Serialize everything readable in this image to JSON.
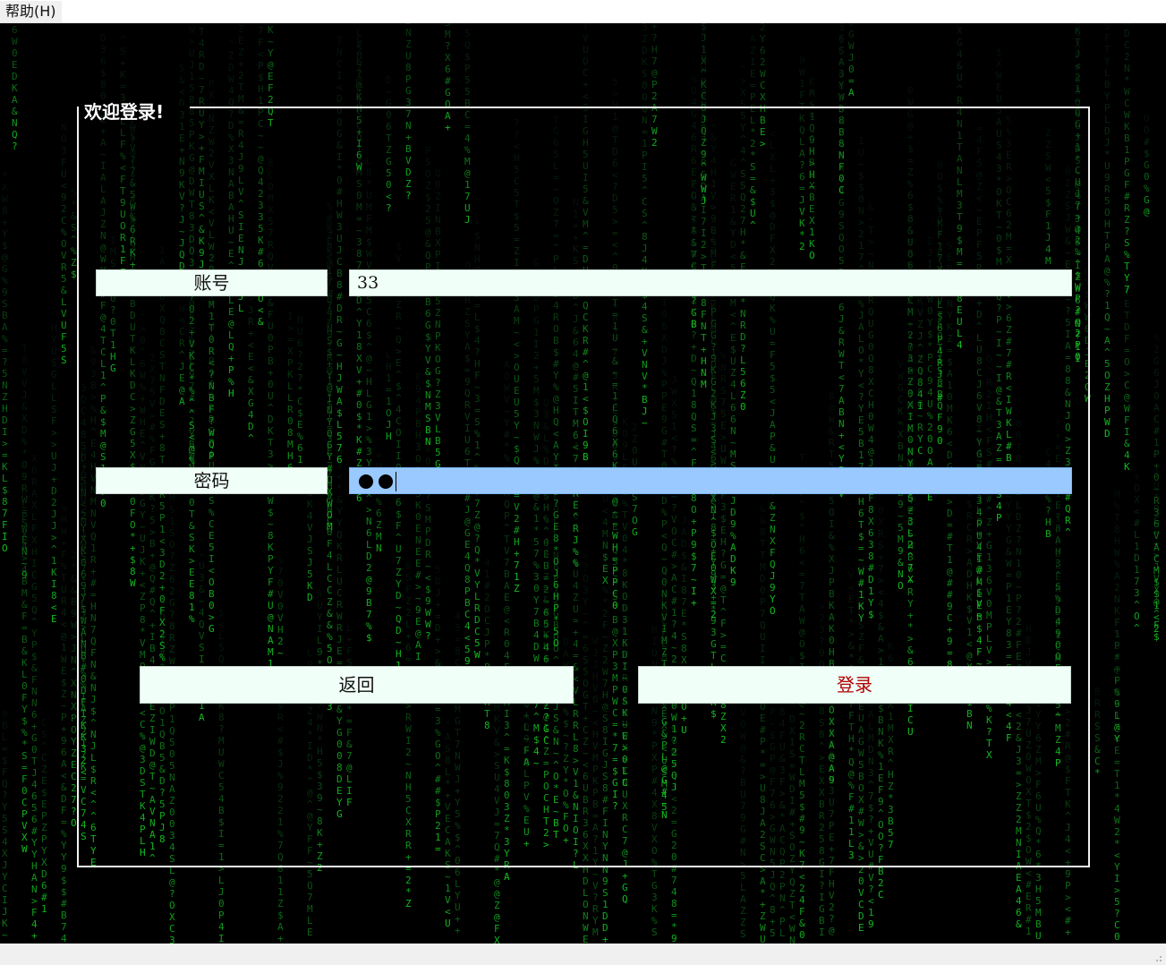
{
  "menubar": {
    "help_label": "帮助(H)"
  },
  "group": {
    "title": "欢迎登录!"
  },
  "form": {
    "account_label": "账号",
    "account_value": "33",
    "password_label": "密码",
    "password_length": 2
  },
  "buttons": {
    "back_label": "返回",
    "login_label": "登录"
  },
  "colors": {
    "background": "#000000",
    "matrix_green": "#1f9d2e",
    "field_bg": "#f0fff8",
    "focus_bg": "#99c9ff",
    "login_text": "#b30000",
    "group_border": "#f2f2f2"
  },
  "icons": {
    "resize_grip": "resize-grip-icon"
  }
}
